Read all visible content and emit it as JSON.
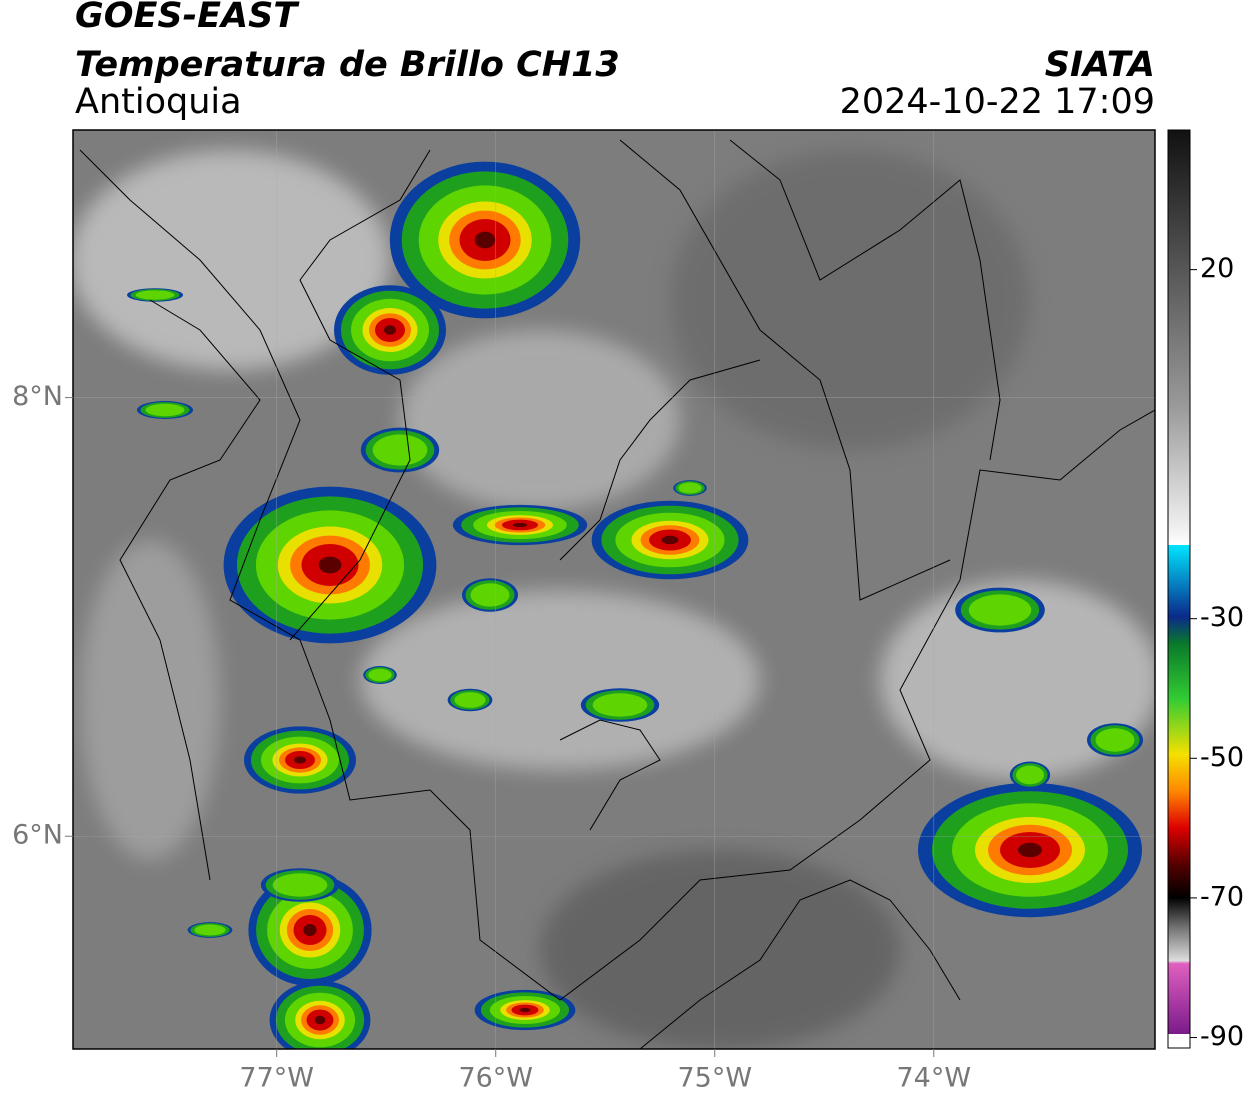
{
  "header": {
    "title": "GOES-EAST",
    "subtitle": "Temperatura de Brillo CH13",
    "region": "Antioquia",
    "source": "SIATA",
    "datetime": "2024-10-22 17:09"
  },
  "map": {
    "xlim": [
      -77.93,
      -72.99
    ],
    "ylim": [
      5.03,
      9.22
    ],
    "xticks": [
      {
        "value": -77,
        "label": "77°W"
      },
      {
        "value": -76,
        "label": "76°W"
      },
      {
        "value": -75,
        "label": "75°W"
      },
      {
        "value": -74,
        "label": "74°W"
      }
    ],
    "yticks": [
      {
        "value": 8,
        "label": "8°N"
      },
      {
        "value": 6,
        "label": "6°N"
      }
    ]
  },
  "colorbar": {
    "lim": [
      -91.5,
      40
    ],
    "ticks": [
      20,
      -30,
      -50,
      -70,
      -90
    ]
  }
}
